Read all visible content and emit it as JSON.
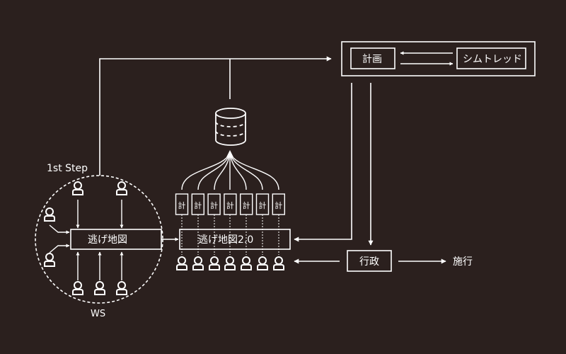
{
  "colors": {
    "background": "#2b201e",
    "foreground": "#ffffff"
  },
  "labels": {
    "first_step": "1st Step",
    "ws": "WS",
    "nigemap": "逃げ地図",
    "nigemap2": "逃げ地図2.0",
    "plan": "計画",
    "simtread": "シムトレッド",
    "gov": "行政",
    "construction": "施行"
  },
  "plan_cards": [
    "計",
    "計",
    "計",
    "計",
    "計",
    "計",
    "計"
  ],
  "icons": {
    "person": "person-icon",
    "database": "database-icon",
    "arrow": "arrow-icon"
  }
}
